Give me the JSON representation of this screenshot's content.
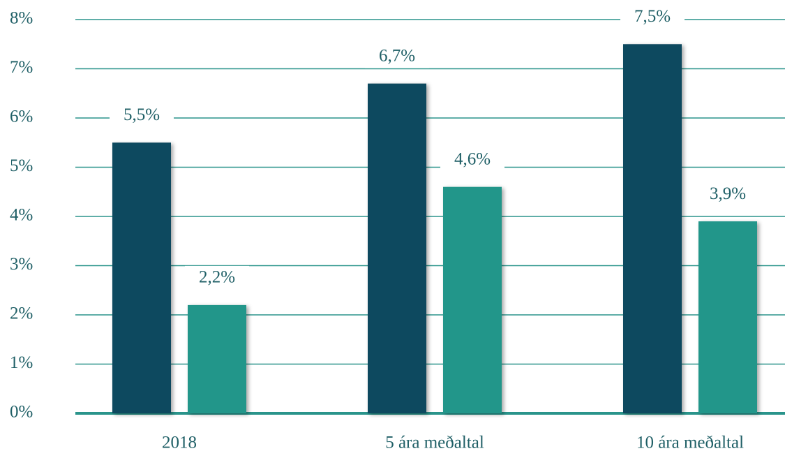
{
  "chart_data": {
    "type": "bar",
    "categories": [
      "2018",
      "5 ára meðaltal",
      "10 ára meðaltal"
    ],
    "series": [
      {
        "color": "#10495e",
        "values": [
          5.5,
          6.7,
          7.5
        ],
        "value_labels": [
          "5,5%",
          "6,7%",
          "7,5%"
        ]
      },
      {
        "color": "#21968a",
        "values": [
          2.2,
          4.6,
          3.9
        ],
        "value_labels": [
          "2,2%",
          "4,6%",
          "3,9%"
        ]
      }
    ],
    "ylim": [
      0,
      8
    ],
    "yticks": [
      {
        "value": 0,
        "label": "0%"
      },
      {
        "value": 1,
        "label": "1%"
      },
      {
        "value": 2,
        "label": "2%"
      },
      {
        "value": 3,
        "label": "3%"
      },
      {
        "value": 4,
        "label": "4%"
      },
      {
        "value": 5,
        "label": "5%"
      },
      {
        "value": 6,
        "label": "6%"
      },
      {
        "value": 7,
        "label": "7%"
      },
      {
        "value": 8,
        "label": "8%"
      }
    ],
    "grid": true
  }
}
